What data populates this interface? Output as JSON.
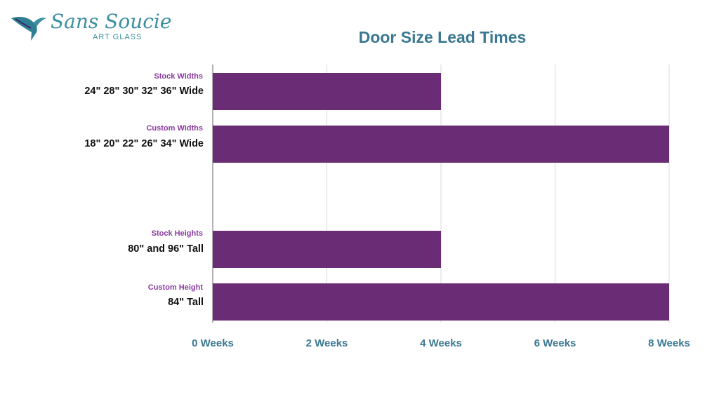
{
  "logo": {
    "script_text": "Sans Soucie",
    "sub_text": "ART GLASS",
    "icon": "hummingbird-icon"
  },
  "chart_data": {
    "type": "bar",
    "orientation": "horizontal",
    "title": "Door Size Lead Times",
    "categories": [
      {
        "group_label": "Stock Widths",
        "label": "24\"  28\"  30\"  32\"  36\"  Wide"
      },
      {
        "group_label": "Custom Widths",
        "label": "18\"  20\"  22\"  26\"  34\"  Wide"
      },
      {
        "group_label": "Stock Heights",
        "label": "80\" and 96\" Tall"
      },
      {
        "group_label": "Custom Height",
        "label": "84\" Tall"
      }
    ],
    "values": [
      4,
      8,
      4,
      8
    ],
    "xlim": [
      0,
      8
    ],
    "x_ticks": [
      0,
      2,
      4,
      6,
      8
    ],
    "x_tick_labels": [
      "0 Weeks",
      "2 Weeks",
      "4 Weeks",
      "6 Weeks",
      "8 Weeks"
    ],
    "grid": true,
    "bar_color": "#6a2c74",
    "tick_label_color": "#3a7891",
    "group_label_color": "#8b3aa0",
    "grid_color": "#d9d9d9"
  }
}
